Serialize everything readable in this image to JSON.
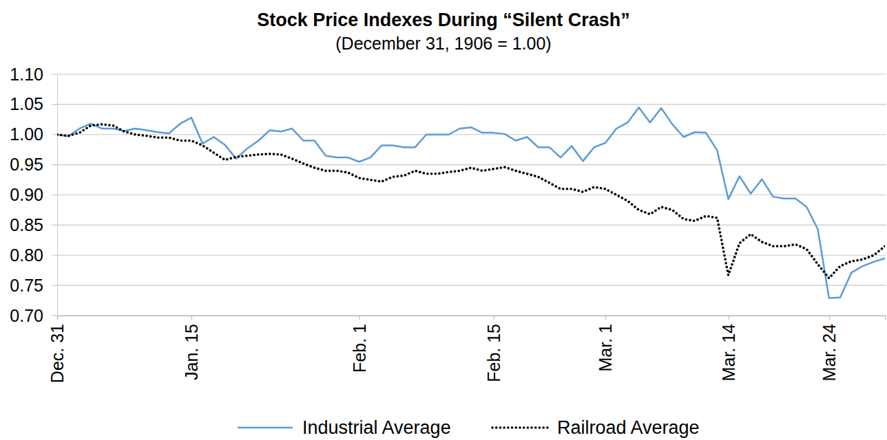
{
  "chart_data": {
    "type": "line",
    "title": "Stock Price Indexes During “Silent Crash”",
    "subtitle": "(December 31, 1906 = 1.00)",
    "categories": [
      "Dec. 31",
      null,
      null,
      null,
      null,
      null,
      null,
      null,
      null,
      null,
      null,
      null,
      "Jan. 15",
      null,
      null,
      null,
      null,
      null,
      null,
      null,
      null,
      null,
      null,
      null,
      null,
      null,
      null,
      "Feb. 1",
      null,
      null,
      null,
      null,
      null,
      null,
      null,
      null,
      null,
      null,
      null,
      "Feb. 15",
      null,
      null,
      null,
      null,
      null,
      null,
      null,
      null,
      null,
      "Mar. 1",
      null,
      null,
      null,
      null,
      null,
      null,
      null,
      null,
      null,
      null,
      "Mar. 14",
      null,
      null,
      null,
      null,
      null,
      null,
      null,
      null,
      "Mar. 24",
      null,
      null,
      null,
      null,
      null
    ],
    "series": [
      {
        "name": "Industrial Average",
        "color": "#5b9bd5",
        "line_style": "solid",
        "values": [
          1.0,
          0.997,
          1.01,
          1.018,
          1.01,
          1.01,
          1.006,
          1.01,
          1.007,
          1.004,
          1.002,
          1.018,
          1.028,
          0.985,
          0.996,
          0.983,
          0.96,
          0.977,
          0.99,
          1.007,
          1.005,
          1.01,
          0.99,
          0.99,
          0.965,
          0.962,
          0.962,
          0.955,
          0.962,
          0.982,
          0.982,
          0.979,
          0.979,
          1.0,
          1.0,
          1.0,
          1.01,
          1.012,
          1.003,
          1.003,
          1.001,
          0.99,
          0.996,
          0.979,
          0.979,
          0.962,
          0.981,
          0.956,
          0.979,
          0.986,
          1.01,
          1.02,
          1.045,
          1.02,
          1.044,
          1.017,
          0.996,
          1.004,
          1.003,
          0.974,
          0.893,
          0.931,
          0.902,
          0.926,
          0.897,
          0.894,
          0.894,
          0.88,
          0.843,
          0.729,
          0.73,
          0.771,
          0.782,
          0.789,
          0.795
        ]
      },
      {
        "name": "Railroad Average",
        "color": "#000000",
        "line_style": "dotted",
        "values": [
          1.0,
          0.998,
          1.003,
          1.015,
          1.017,
          1.015,
          1.005,
          1.0,
          0.998,
          0.995,
          0.995,
          0.99,
          0.99,
          0.982,
          0.97,
          0.958,
          0.963,
          0.965,
          0.967,
          0.968,
          0.967,
          0.96,
          0.952,
          0.945,
          0.94,
          0.94,
          0.937,
          0.928,
          0.925,
          0.922,
          0.93,
          0.932,
          0.94,
          0.935,
          0.935,
          0.938,
          0.94,
          0.945,
          0.94,
          0.943,
          0.946,
          0.94,
          0.935,
          0.93,
          0.92,
          0.91,
          0.91,
          0.905,
          0.913,
          0.91,
          0.9,
          0.89,
          0.875,
          0.868,
          0.88,
          0.875,
          0.86,
          0.857,
          0.865,
          0.862,
          0.767,
          0.82,
          0.835,
          0.822,
          0.815,
          0.815,
          0.818,
          0.81,
          0.785,
          0.762,
          0.782,
          0.79,
          0.793,
          0.8,
          0.815
        ]
      }
    ],
    "ylim": [
      0.7,
      1.1
    ],
    "yticks": [
      {
        "value": 0.7,
        "label": "0.70"
      },
      {
        "value": 0.75,
        "label": "0.75"
      },
      {
        "value": 0.8,
        "label": "0.80"
      },
      {
        "value": 0.85,
        "label": "0.85"
      },
      {
        "value": 0.9,
        "label": "0.90"
      },
      {
        "value": 0.95,
        "label": "0.95"
      },
      {
        "value": 1.0,
        "label": "1.00"
      },
      {
        "value": 1.05,
        "label": "1.05"
      },
      {
        "value": 1.1,
        "label": "1.10"
      }
    ],
    "grid": true,
    "legend": "bottom"
  }
}
